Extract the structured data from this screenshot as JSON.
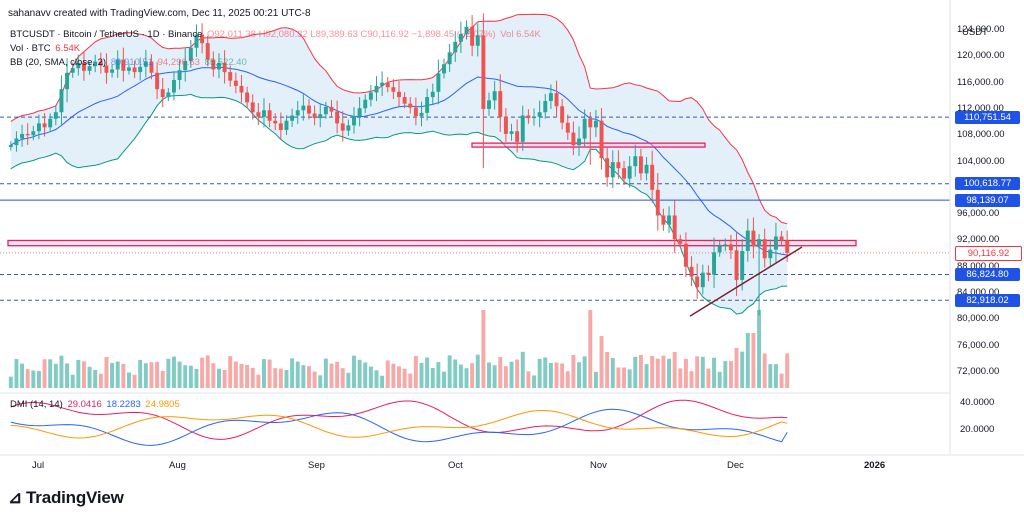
{
  "credit": "sahanavv created with TradingView.com, Dec 11, 2025 00:21 UTC-8",
  "legend": {
    "symbol_line": "BTCUSDT · Bitcoin / TetherUS · 1D · Binance",
    "ohlc": "O92,011.38 H92,080.32 L89,389.63 C90,116.92 −1,898.45 (−2.07%)",
    "vol_inline": "Vol 6.54K",
    "vol_label": "Vol · BTC",
    "vol_value": "6.54K",
    "bb_label": "BB (20, SMA, close, 2)",
    "bb_basis": "89,910.51",
    "bb_upper": "94,296.63",
    "bb_lower": "85,522.40",
    "dmi_label": "DMI (14, 14)",
    "dmi_plus": "29.0416",
    "dmi_minus": "18.2283",
    "dmi_adx": "24.9805"
  },
  "currency": "USDT",
  "price_labels": [
    {
      "id": "p1",
      "text": "110,751.54",
      "bg": "#1e53e5",
      "fg": "#ffffff",
      "value": 110751.54
    },
    {
      "id": "p2",
      "text": "100,618.77",
      "bg": "#1e53e5",
      "fg": "#ffffff",
      "value": 100618.77
    },
    {
      "id": "p3",
      "text": "98,139.07",
      "bg": "#1e53e5",
      "fg": "#ffffff",
      "value": 98139.07
    },
    {
      "id": "p4",
      "text": "90,116.92",
      "bg": "#ffffff",
      "fg": "#f23645",
      "value": 90116.92
    },
    {
      "id": "p5",
      "text": "86,824.80",
      "bg": "#1e53e5",
      "fg": "#ffffff",
      "value": 86824.8
    },
    {
      "id": "p6",
      "text": "82,918.02",
      "bg": "#1e53e5",
      "fg": "#ffffff",
      "value": 82918.02
    }
  ],
  "axis_ticks": [
    "124,000.00",
    "120,000.00",
    "116,000.00",
    "112,000.00",
    "108,000.00",
    "104,000.00",
    "96,000.00",
    "92,000.00",
    "88,000.00",
    "84,000.00",
    "80,000.00",
    "76,000.00",
    "72,000.00"
  ],
  "dmi_ticks": [
    "40.0000",
    "20.0000"
  ],
  "x_ticks": [
    "Jul",
    "Aug",
    "Sep",
    "Oct",
    "Nov",
    "Dec",
    "2026"
  ],
  "brand": "TradingView",
  "colors": {
    "up": "#26a69a",
    "down": "#ef5350",
    "bb_basis": "#2962ff",
    "bb_upper": "#f23645",
    "bb_lower": "#089981",
    "bb_fill": "#d9eaf7",
    "dashed": "#1e53e5",
    "zone": "#e91e63",
    "trend": "#7b1f36",
    "dmi_plus": "#e91e63",
    "dmi_minus": "#2962ff",
    "dmi_adx": "#ff9800"
  },
  "chart_data": {
    "type": "candlestick",
    "title": "BTCUSDT · Bitcoin / TetherUS · 1D · Binance",
    "xlabel": "",
    "ylabel": "USDT",
    "ylim": [
      70000,
      126000
    ],
    "x_ticks": [
      "Jul",
      "Aug",
      "Sep",
      "Oct",
      "Nov",
      "Dec",
      "2026"
    ],
    "horizontal_levels": [
      110751.54,
      100618.77,
      98139.07,
      86824.8,
      82918.02
    ],
    "last_close": 90116.92,
    "resistance_zones": [
      [
        106200,
        106800
      ],
      [
        91200,
        92000
      ]
    ],
    "trendline": {
      "from": [
        80500,
        "Nov 21"
      ],
      "to": [
        91000,
        "Dec 10"
      ]
    },
    "close_series_approx": [
      106500,
      107500,
      108200,
      108000,
      108600,
      109800,
      109200,
      110500,
      111500,
      115000,
      117500,
      118200,
      119000,
      117800,
      118500,
      119200,
      118600,
      117500,
      118000,
      119500,
      117800,
      118300,
      117600,
      118400,
      119200,
      117500,
      115000,
      113800,
      114500,
      116400,
      117900,
      119300,
      121300,
      123300,
      122000,
      119500,
      118000,
      119000,
      117600,
      116300,
      115500,
      114500,
      113000,
      111500,
      110800,
      111800,
      110200,
      109800,
      108800,
      110200,
      111000,
      111800,
      112500,
      111300,
      110600,
      111200,
      112300,
      111600,
      109800,
      108700,
      109500,
      110900,
      112100,
      113400,
      114500,
      115500,
      116000,
      115300,
      114600,
      113800,
      112800,
      112200,
      110900,
      111400,
      113800,
      114600,
      117400,
      118800,
      120600,
      122200,
      123400,
      124500,
      121600,
      123200,
      112000,
      113300,
      114700,
      110800,
      108200,
      108600,
      107000,
      111000,
      110600,
      110800,
      111500,
      113200,
      114400,
      112400,
      109900,
      108400,
      106500,
      107500,
      110500,
      109200,
      110200,
      104500,
      101600,
      103900,
      103000,
      101400,
      103300,
      104800,
      102200,
      103500,
      99700,
      95800,
      94400,
      95800,
      92200,
      91500,
      88000,
      86500,
      84900,
      87100,
      86800,
      90200,
      91200,
      91400,
      90500,
      86000,
      90400,
      93500,
      91100,
      92200,
      89300,
      90600,
      92600,
      92000,
      90116.92
    ],
    "dmi": {
      "plus": 29.0416,
      "minus": 18.2283,
      "adx": 24.9805,
      "ylim": [
        5,
        55
      ]
    }
  }
}
